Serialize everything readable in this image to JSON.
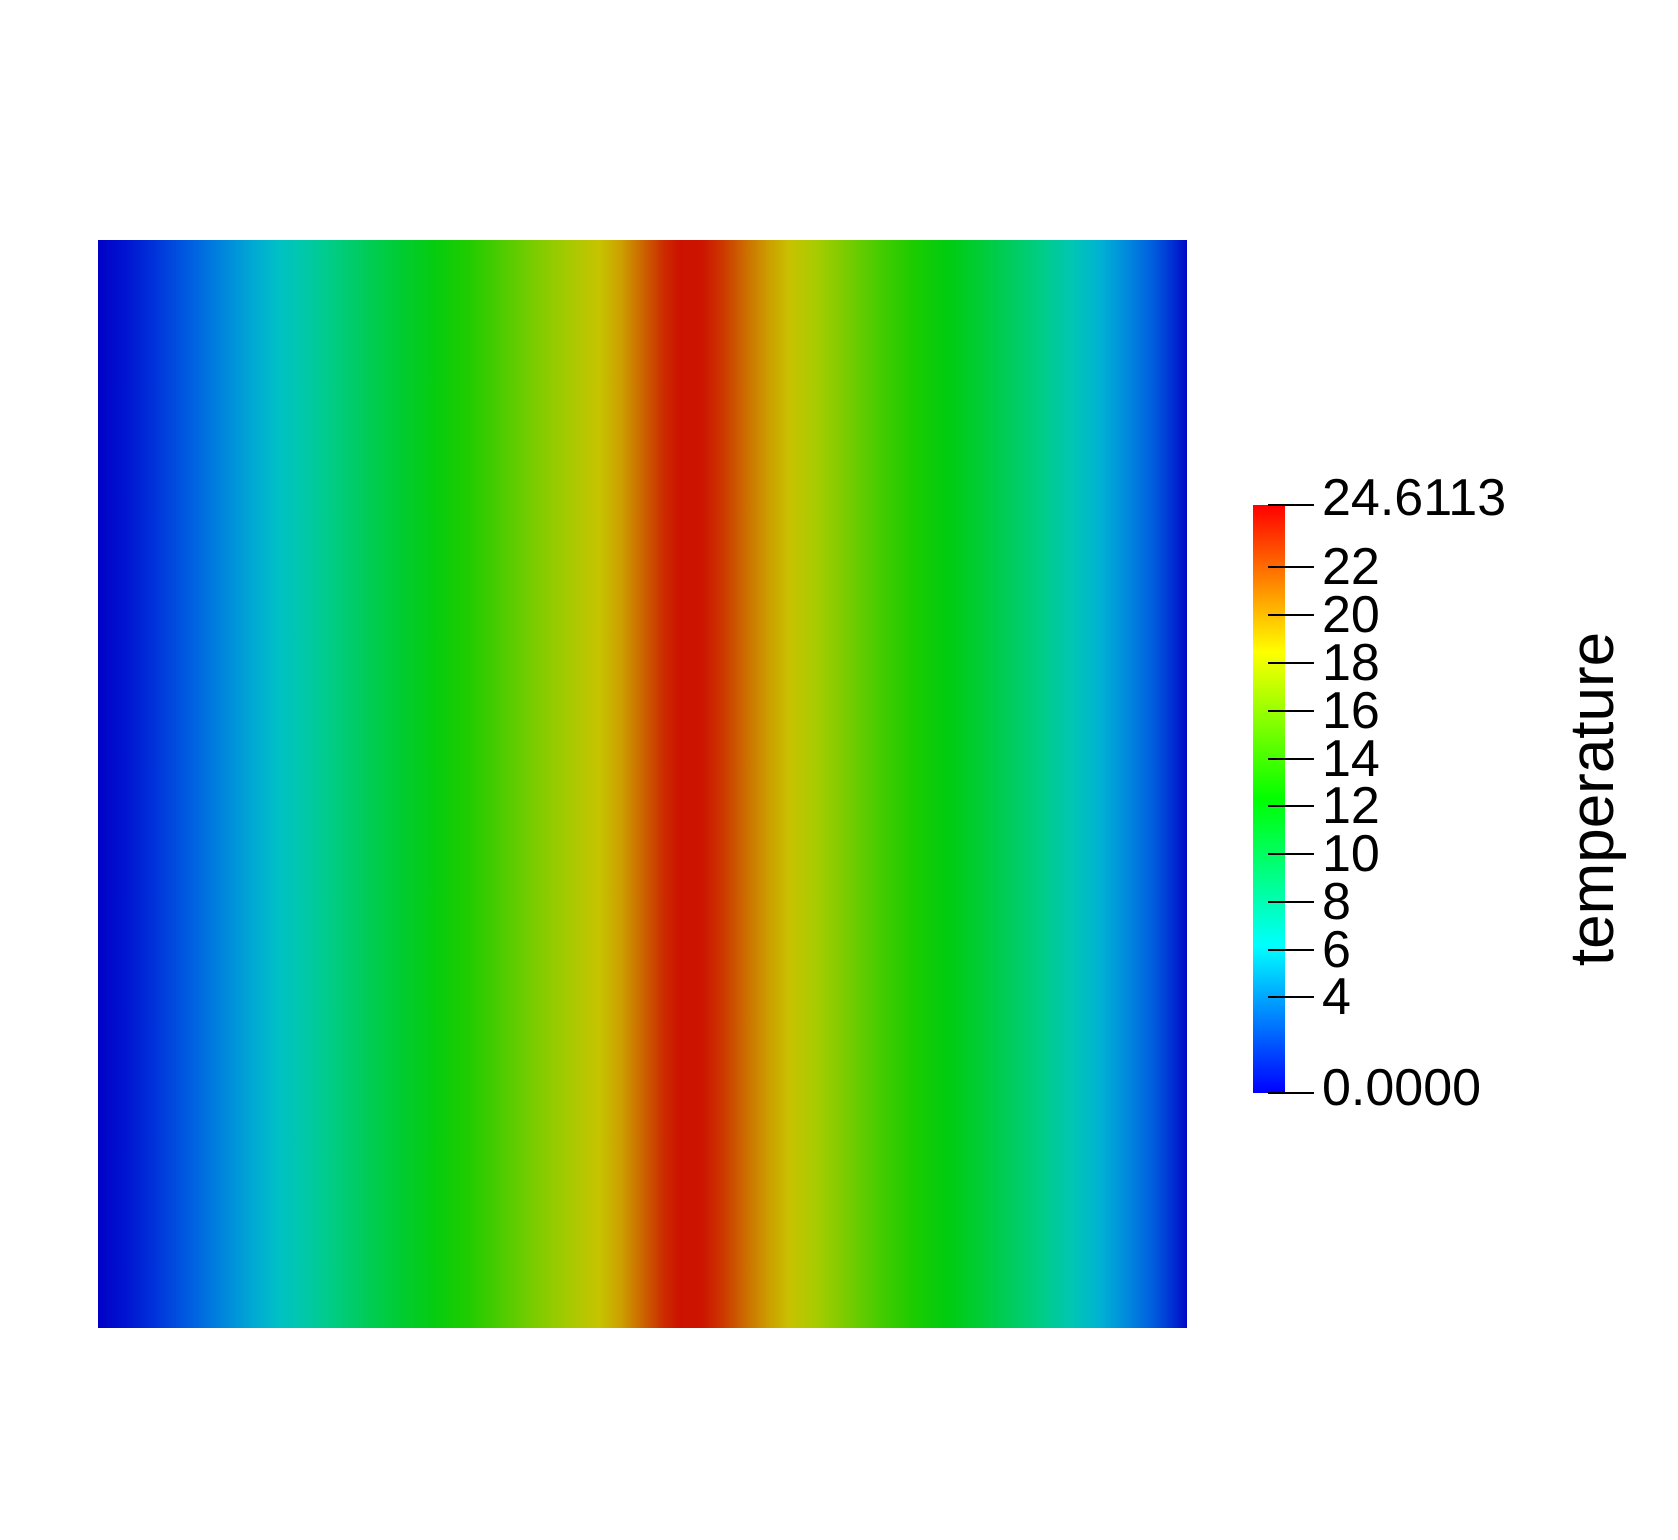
{
  "chart_data": {
    "type": "heatmap",
    "title": "",
    "field_label": "temperature",
    "value_range": [
      0,
      24.6113
    ],
    "min_label": "0.0000",
    "max_label": "24.6113",
    "colorbar": {
      "orientation": "vertical",
      "title": "temperature",
      "tick_values": [
        4,
        6,
        8,
        10,
        12,
        14,
        16,
        18,
        20,
        22
      ],
      "stops": [
        {
          "frac": 0.0,
          "color": "#0000ff"
        },
        {
          "frac": 0.25,
          "color": "#00ffff"
        },
        {
          "frac": 0.5,
          "color": "#00ff00"
        },
        {
          "frac": 0.75,
          "color": "#ffff00"
        },
        {
          "frac": 1.0,
          "color": "#ff0000"
        }
      ]
    },
    "surface": {
      "description": "Square domain rendered as shaded surface; temperature varies along x only (vertical color bands), zero at left and right edges, peak 24.6113 slightly right of the horizontal center.",
      "shading_factor": 0.8,
      "profile_samples": [
        {
          "x_frac": 0.0,
          "temperature": 0.0
        },
        {
          "x_frac": 0.05,
          "temperature": 1.3
        },
        {
          "x_frac": 0.1,
          "temperature": 3.2
        },
        {
          "x_frac": 0.155,
          "temperature": 6.2
        },
        {
          "x_frac": 0.22,
          "temperature": 9.0
        },
        {
          "x_frac": 0.3,
          "temperature": 12.3
        },
        {
          "x_frac": 0.38,
          "temperature": 15.4
        },
        {
          "x_frac": 0.46,
          "temperature": 18.5
        },
        {
          "x_frac": 0.5,
          "temperature": 23.0
        },
        {
          "x_frac": 0.53,
          "temperature": 24.6113
        },
        {
          "x_frac": 0.56,
          "temperature": 23.0
        },
        {
          "x_frac": 0.6,
          "temperature": 20.5
        },
        {
          "x_frac": 0.635,
          "temperature": 18.5
        },
        {
          "x_frac": 0.715,
          "temperature": 12.3
        },
        {
          "x_frac": 0.8,
          "temperature": 9.3
        },
        {
          "x_frac": 0.89,
          "temperature": 6.2
        },
        {
          "x_frac": 0.95,
          "temperature": 3.0
        },
        {
          "x_frac": 1.0,
          "temperature": 0.0
        }
      ],
      "gradient_stops": [
        {
          "pos": 0.0,
          "color": "#0000c6"
        },
        {
          "pos": 2.5,
          "color": "#0014d0"
        },
        {
          "pos": 5.0,
          "color": "#0030da"
        },
        {
          "pos": 8.0,
          "color": "#0058e0"
        },
        {
          "pos": 11.0,
          "color": "#0080de"
        },
        {
          "pos": 14.0,
          "color": "#00a6d4"
        },
        {
          "pos": 16.5,
          "color": "#00c0c6"
        },
        {
          "pos": 19.0,
          "color": "#00c9a8"
        },
        {
          "pos": 22.0,
          "color": "#00cc7e"
        },
        {
          "pos": 25.0,
          "color": "#00cc54"
        },
        {
          "pos": 28.0,
          "color": "#00cc30"
        },
        {
          "pos": 31.0,
          "color": "#06cc0e"
        },
        {
          "pos": 34.0,
          "color": "#20cc00"
        },
        {
          "pos": 37.0,
          "color": "#4ccc00"
        },
        {
          "pos": 40.0,
          "color": "#7acc00"
        },
        {
          "pos": 43.0,
          "color": "#a4ca00"
        },
        {
          "pos": 46.0,
          "color": "#c6c400"
        },
        {
          "pos": 48.0,
          "color": "#cca000"
        },
        {
          "pos": 50.0,
          "color": "#cc6600"
        },
        {
          "pos": 52.0,
          "color": "#cc2a00"
        },
        {
          "pos": 53.5,
          "color": "#cc1100"
        },
        {
          "pos": 55.5,
          "color": "#cc1400"
        },
        {
          "pos": 57.5,
          "color": "#cc3a00"
        },
        {
          "pos": 59.5,
          "color": "#cc6e00"
        },
        {
          "pos": 61.5,
          "color": "#cc9c00"
        },
        {
          "pos": 63.5,
          "color": "#c8c200"
        },
        {
          "pos": 66.0,
          "color": "#a6cc00"
        },
        {
          "pos": 69.0,
          "color": "#74cc00"
        },
        {
          "pos": 72.0,
          "color": "#42cc00"
        },
        {
          "pos": 75.0,
          "color": "#1acc00"
        },
        {
          "pos": 78.0,
          "color": "#00cc10"
        },
        {
          "pos": 81.0,
          "color": "#00cc36"
        },
        {
          "pos": 84.0,
          "color": "#00cc60"
        },
        {
          "pos": 87.0,
          "color": "#00cc8c"
        },
        {
          "pos": 89.5,
          "color": "#00c6b4"
        },
        {
          "pos": 92.0,
          "color": "#00b2d2"
        },
        {
          "pos": 94.5,
          "color": "#008ade"
        },
        {
          "pos": 97.0,
          "color": "#005ade"
        },
        {
          "pos": 98.8,
          "color": "#002cd2"
        },
        {
          "pos": 100.0,
          "color": "#0008c6"
        }
      ]
    }
  }
}
